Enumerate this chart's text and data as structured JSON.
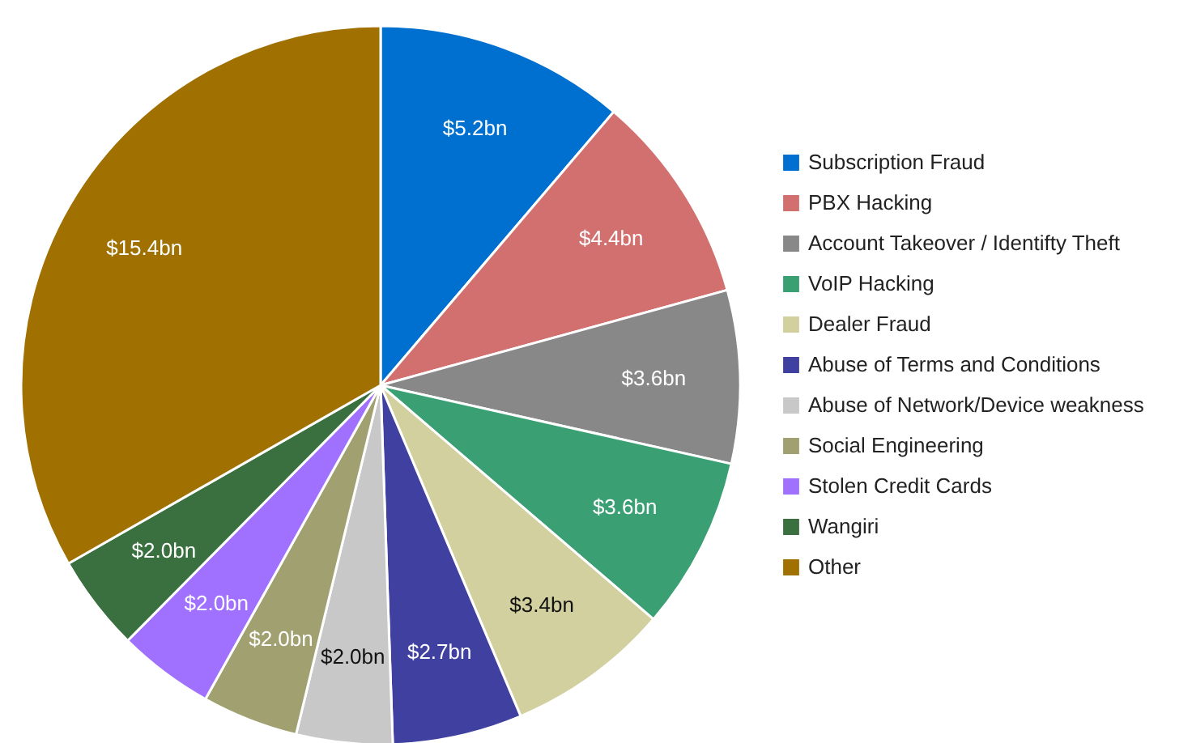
{
  "chart_data": {
    "type": "pie",
    "categories": [
      "Subscription Fraud",
      "PBX Hacking",
      "Account Takeover / Identifty Theft",
      "VoIP Hacking",
      "Dealer Fraud",
      "Abuse of Terms and Conditions",
      "Abuse of Network/Device weakness",
      "Social Engineering",
      "Stolen Credit Cards",
      "Wangiri",
      "Other"
    ],
    "values": [
      5.2,
      4.4,
      3.6,
      3.6,
      3.4,
      2.7,
      2.0,
      2.0,
      2.0,
      2.0,
      15.4
    ],
    "value_labels": [
      "$5.2bn",
      "$4.4bn",
      "$3.6bn",
      "$3.6bn",
      "$3.4bn",
      "$2.7bn",
      "$2.0bn",
      "$2.0bn",
      "$2.0bn",
      "$2.0bn",
      "$15.4bn"
    ],
    "colors": [
      "#0070d0",
      "#d27070",
      "#888888",
      "#3aa074",
      "#d2d09e",
      "#4040a0",
      "#c8c8c8",
      "#a0a070",
      "#a070ff",
      "#3a7040",
      "#a07000"
    ],
    "legend": "right"
  }
}
